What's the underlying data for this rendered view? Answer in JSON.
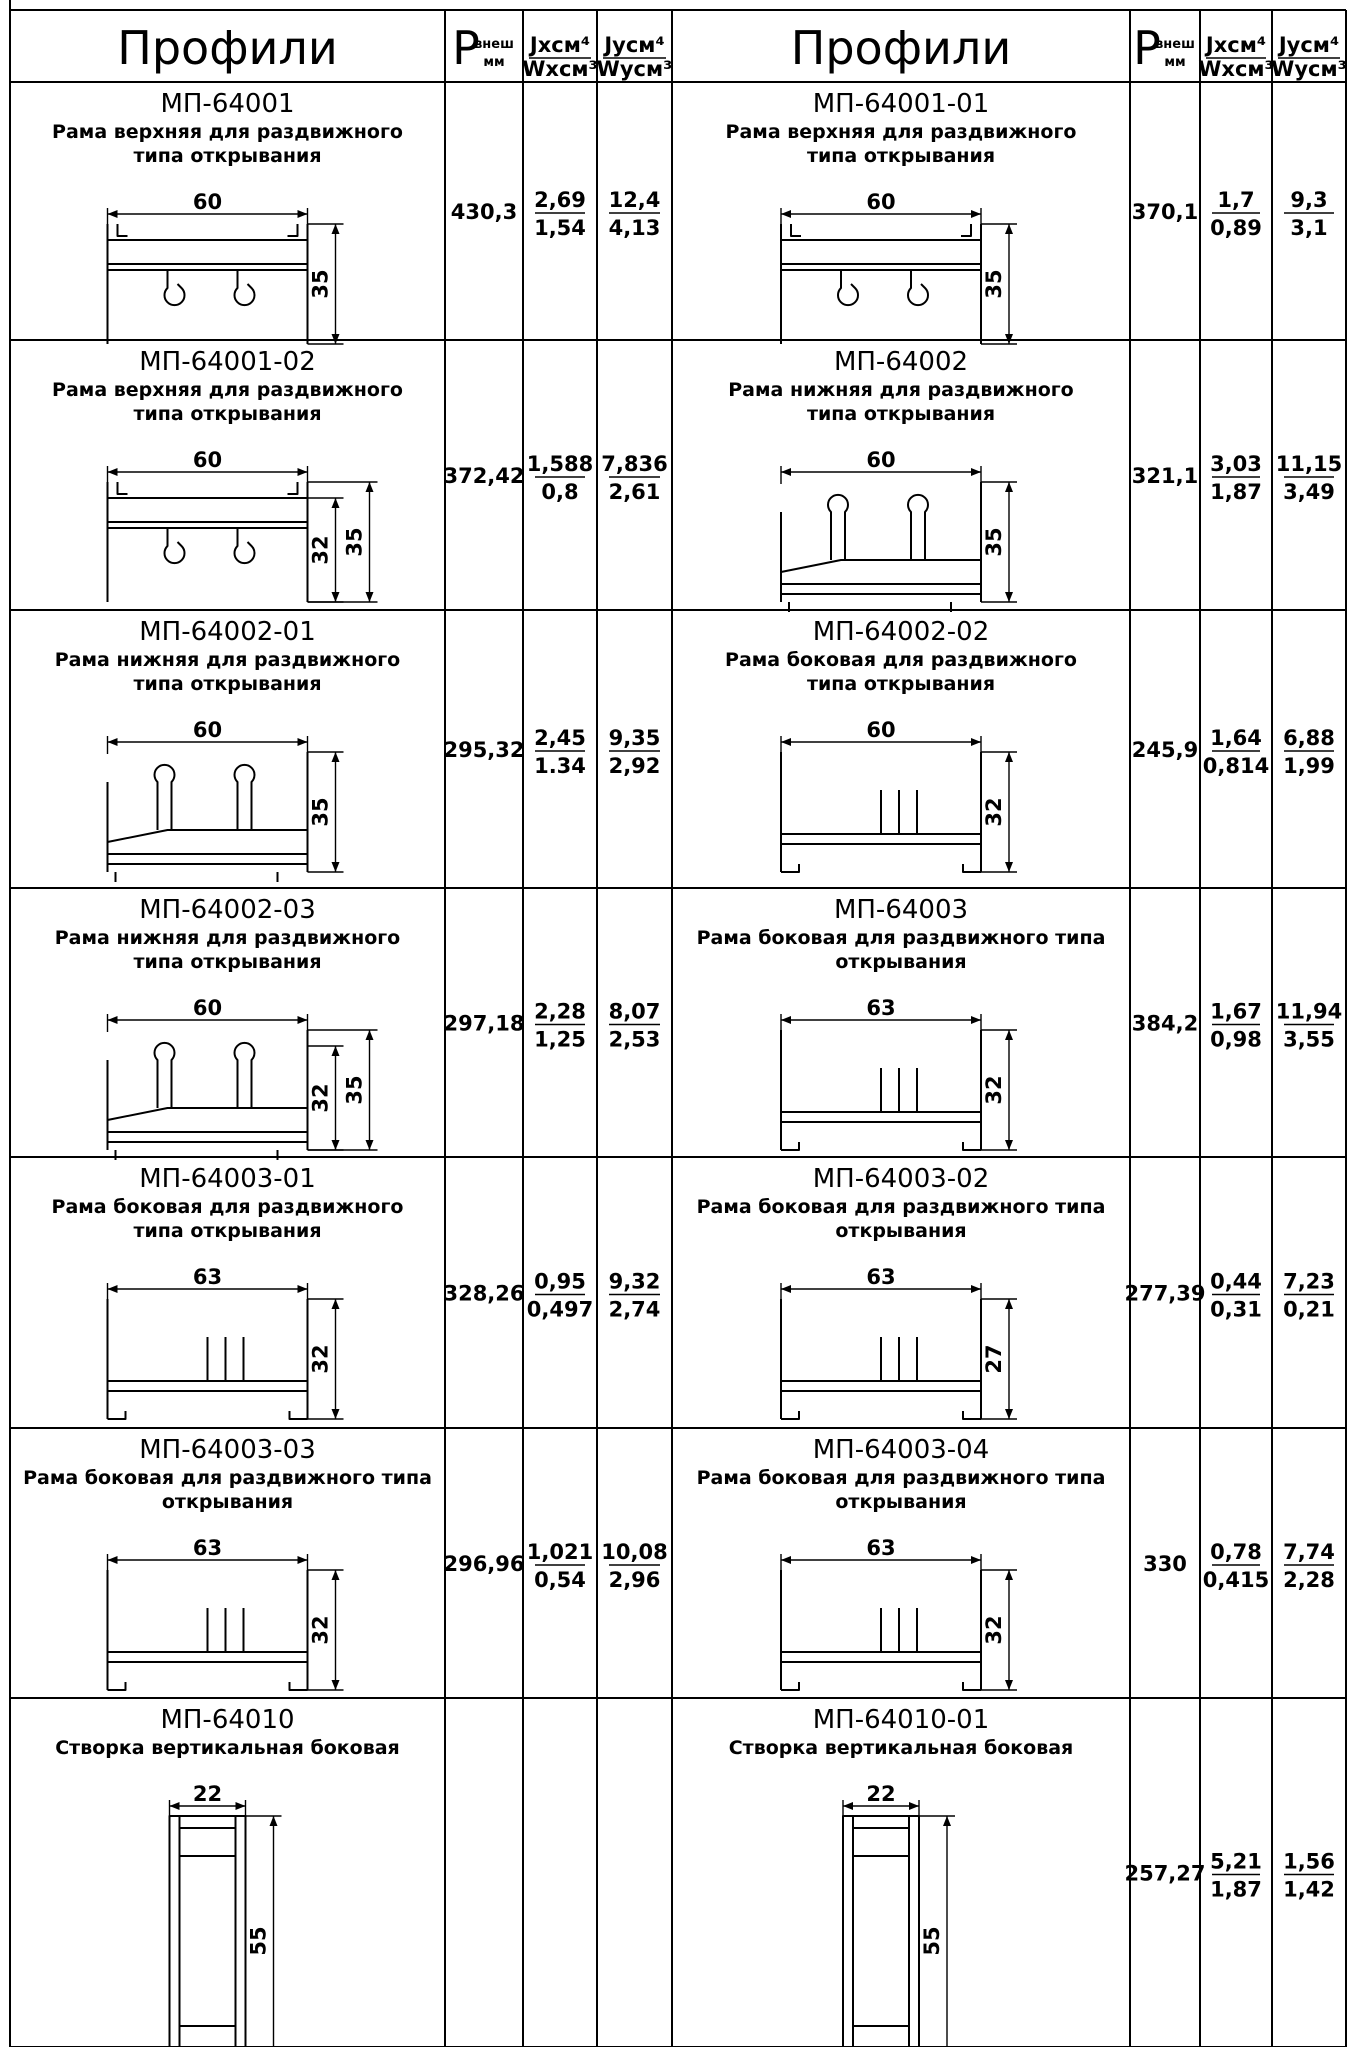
{
  "header": {
    "profiles_title": "Профили",
    "perimeter_p": "P",
    "perimeter_sub": "внеш",
    "perimeter_unit": "мм",
    "jx": "Jxсм⁴",
    "wx": "Wxсм³",
    "jy": "Jyсм⁴",
    "wy": "Wyсм³"
  },
  "rows": [
    {
      "left": {
        "code": "МП-64001",
        "desc": [
          "Рама верхняя для раздвижного",
          "типа открывания"
        ],
        "width": "60",
        "heights": [
          "35"
        ],
        "p": "430,3",
        "jx": "2,69",
        "wx": "1,54",
        "jy": "12,4",
        "wy": "4,13"
      },
      "right": {
        "code": "МП-64001-01",
        "desc": [
          "Рама верхняя для раздвижного",
          "типа открывания"
        ],
        "width": "60",
        "heights": [
          "35"
        ],
        "p": "370,1",
        "jx": "1,7",
        "wx": "0,89",
        "jy": "9,3",
        "wy": "3,1"
      }
    },
    {
      "left": {
        "code": "МП-64001-02",
        "desc": [
          "Рама верхняя для раздвижного",
          "типа открывания"
        ],
        "width": "60",
        "heights": [
          "32",
          "35"
        ],
        "p": "372,42",
        "jx": "1,588",
        "wx": "0,8",
        "jy": "7,836",
        "wy": "2,61"
      },
      "right": {
        "code": "МП-64002",
        "desc": [
          "Рама нижняя для раздвижного",
          "типа открывания"
        ],
        "width": "60",
        "heights": [
          "35"
        ],
        "p": "321,1",
        "jx": "3,03",
        "wx": "1,87",
        "jy": "11,15",
        "wy": "3,49"
      }
    },
    {
      "left": {
        "code": "МП-64002-01",
        "desc": [
          "Рама нижняя для раздвижного",
          "типа открывания"
        ],
        "width": "60",
        "heights": [
          "35"
        ],
        "p": "295,32",
        "jx": "2,45",
        "wx": "1.34",
        "jy": "9,35",
        "wy": "2,92"
      },
      "right": {
        "code": "МП-64002-02",
        "desc": [
          "Рама боковая для раздвижного",
          "типа открывания"
        ],
        "width": "60",
        "heights": [
          "32"
        ],
        "p": "245,9",
        "jx": "1,64",
        "wx": "0,814",
        "jy": "6,88",
        "wy": "1,99"
      }
    },
    {
      "left": {
        "code": "МП-64002-03",
        "desc": [
          "Рама нижняя для раздвижного",
          "типа открывания"
        ],
        "width": "60",
        "heights": [
          "32",
          "35"
        ],
        "p": "297,18",
        "jx": "2,28",
        "wx": "1,25",
        "jy": "8,07",
        "wy": "2,53"
      },
      "right": {
        "code": "МП-64003",
        "desc": [
          "Рама боковая для раздвижного типа",
          "открывания"
        ],
        "width": "63",
        "heights": [
          "32"
        ],
        "p": "384,2",
        "jx": "1,67",
        "wx": "0,98",
        "jy": "11,94",
        "wy": "3,55"
      }
    },
    {
      "left": {
        "code": "МП-64003-01",
        "desc": [
          "Рама боковая для раздвижного",
          "типа открывания"
        ],
        "width": "63",
        "heights": [
          "32"
        ],
        "p": "328,26",
        "jx": "0,95",
        "wx": "0,497",
        "jy": "9,32",
        "wy": "2,74"
      },
      "right": {
        "code": "МП-64003-02",
        "desc": [
          "Рама боковая для раздвижного типа",
          "открывания"
        ],
        "width": "63",
        "heights": [
          "27"
        ],
        "p": "277,39",
        "jx": "0,44",
        "wx": "0,31",
        "jy": "7,23",
        "wy": "0,21"
      }
    },
    {
      "left": {
        "code": "МП-64003-03",
        "desc": [
          "Рама боковая для раздвижного типа",
          "открывания"
        ],
        "width": "63",
        "heights": [
          "32"
        ],
        "p": "296,96",
        "jx": "1,021",
        "wx": "0,54",
        "jy": "10,08",
        "wy": "2,96"
      },
      "right": {
        "code": "МП-64003-04",
        "desc": [
          "Рама боковая для раздвижного типа",
          "открывания"
        ],
        "width": "63",
        "heights": [
          "32"
        ],
        "p": "330",
        "jx": "0,78",
        "wx": "0,415",
        "jy": "7,74",
        "wy": "2,28"
      }
    },
    {
      "left": {
        "code": "МП-64010",
        "desc": [
          "Створка вертикальная боковая"
        ],
        "width": "22",
        "heights": [
          "55"
        ],
        "p": "",
        "jx": "",
        "wx": "",
        "jy": "",
        "wy": ""
      },
      "right": {
        "code": "МП-64010-01",
        "desc": [
          "Створка вертикальная боковая"
        ],
        "width": "22",
        "heights": [
          "55"
        ],
        "p": "257,27",
        "jx": "5,21",
        "wx": "1,87",
        "jy": "1,56",
        "wy": "1,42"
      }
    }
  ]
}
